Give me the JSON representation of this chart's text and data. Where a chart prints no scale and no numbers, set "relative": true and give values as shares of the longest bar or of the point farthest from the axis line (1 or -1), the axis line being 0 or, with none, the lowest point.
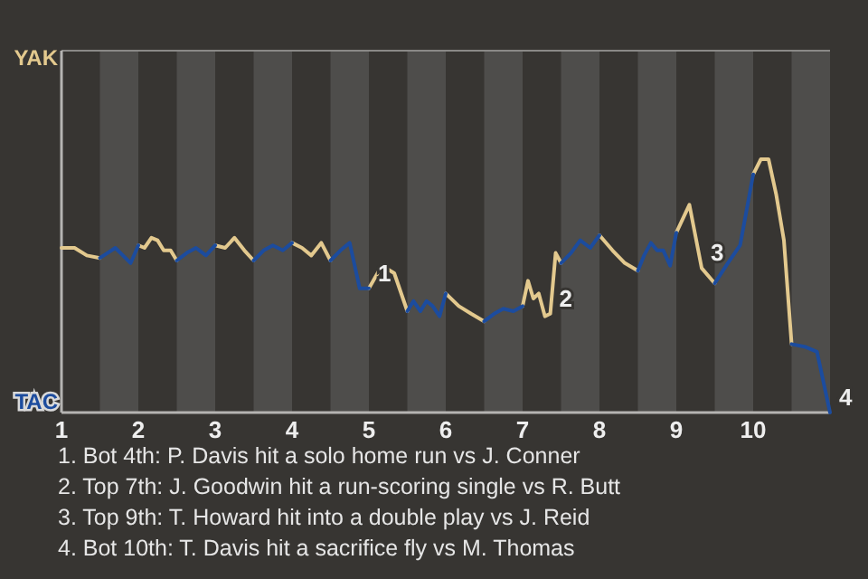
{
  "chart_data": {
    "type": "line",
    "relative": true,
    "xlim": [
      1,
      11
    ],
    "xticks": [
      1,
      2,
      3,
      4,
      5,
      6,
      7,
      8,
      9,
      10
    ],
    "x": [
      1,
      1.17,
      1.33,
      1.5,
      1.6,
      1.7,
      1.8,
      1.9,
      2,
      2.08,
      2.17,
      2.25,
      2.33,
      2.42,
      2.5,
      2.63,
      2.75,
      2.88,
      3,
      3.13,
      3.25,
      3.38,
      3.5,
      3.63,
      3.75,
      3.88,
      4,
      4.13,
      4.25,
      4.38,
      4.5,
      4.63,
      4.75,
      4.88,
      5,
      5.17,
      5.33,
      5.5,
      5.58,
      5.67,
      5.75,
      5.83,
      5.92,
      6,
      6.17,
      6.33,
      6.5,
      6.63,
      6.75,
      6.88,
      7,
      7.07,
      7.14,
      7.21,
      7.29,
      7.36,
      7.43,
      7.5,
      7.63,
      7.75,
      7.88,
      8,
      8.17,
      8.33,
      8.5,
      8.58,
      8.67,
      8.75,
      8.83,
      8.92,
      9,
      9.17,
      9.33,
      9.5,
      9.67,
      9.83,
      10,
      10.1,
      10.2,
      10.3,
      10.4,
      10.5,
      10.67,
      10.83,
      11
    ],
    "series": [
      {
        "name": "YAK",
        "color": "#e3c98e",
        "values": [
          0.65,
          0.65,
          0.62,
          0.61,
          null,
          null,
          null,
          null,
          0.66,
          0.65,
          0.69,
          0.68,
          0.64,
          0.64,
          0.6,
          null,
          null,
          null,
          0.66,
          0.65,
          0.69,
          0.64,
          0.6,
          null,
          null,
          null,
          0.67,
          0.65,
          0.62,
          0.67,
          0.6,
          null,
          null,
          null,
          0.49,
          0.58,
          0.55,
          0.4,
          null,
          null,
          null,
          null,
          null,
          0.47,
          0.42,
          0.39,
          0.36,
          null,
          null,
          null,
          0.42,
          0.52,
          0.45,
          0.47,
          0.38,
          0.39,
          0.63,
          0.59,
          null,
          null,
          null,
          0.7,
          0.64,
          0.59,
          0.56,
          null,
          null,
          null,
          null,
          null,
          0.71,
          0.82,
          0.57,
          0.51,
          null,
          null,
          0.94,
          1,
          1,
          0.86,
          0.68,
          0.27,
          null,
          null,
          null
        ]
      },
      {
        "name": "TAC",
        "color": "#1c4c9e",
        "values": [
          null,
          null,
          null,
          0.61,
          0.63,
          0.65,
          0.62,
          0.59,
          0.66,
          null,
          null,
          null,
          null,
          null,
          0.6,
          0.63,
          0.65,
          0.62,
          0.66,
          null,
          null,
          null,
          0.6,
          0.64,
          0.66,
          0.64,
          0.67,
          null,
          null,
          null,
          0.6,
          0.64,
          0.67,
          0.49,
          0.49,
          null,
          null,
          0.4,
          0.44,
          0.4,
          0.44,
          0.42,
          0.38,
          0.47,
          null,
          null,
          0.36,
          0.39,
          0.41,
          0.4,
          0.42,
          null,
          null,
          null,
          null,
          null,
          null,
          0.59,
          0.63,
          0.68,
          0.65,
          0.7,
          null,
          null,
          0.56,
          0.62,
          0.67,
          0.64,
          0.64,
          0.58,
          0.71,
          null,
          null,
          0.51,
          0.59,
          0.66,
          0.94,
          null,
          null,
          null,
          null,
          0.27,
          0.26,
          0.24,
          0
        ]
      }
    ],
    "bands": [
      {
        "axis": "x",
        "from": 1.5,
        "to": 2,
        "color": "#4e4d4b"
      },
      {
        "axis": "x",
        "from": 2.5,
        "to": 3,
        "color": "#4e4d4b"
      },
      {
        "axis": "x",
        "from": 3.5,
        "to": 4,
        "color": "#4e4d4b"
      },
      {
        "axis": "x",
        "from": 4.5,
        "to": 5,
        "color": "#4e4d4b"
      },
      {
        "axis": "x",
        "from": 5.5,
        "to": 6,
        "color": "#4e4d4b"
      },
      {
        "axis": "x",
        "from": 6.5,
        "to": 7,
        "color": "#4e4d4b"
      },
      {
        "axis": "x",
        "from": 7.5,
        "to": 8,
        "color": "#4e4d4b"
      },
      {
        "axis": "x",
        "from": 8.5,
        "to": 9,
        "color": "#4e4d4b"
      },
      {
        "axis": "x",
        "from": 9.5,
        "to": 10,
        "color": "#4e4d4b"
      },
      {
        "axis": "x",
        "from": 10.5,
        "to": 11,
        "color": "#4e4d4b"
      }
    ],
    "legend": "left",
    "marker": "none",
    "line_style": "solid",
    "annotations": [
      {
        "text": "1",
        "x": 5,
        "y": 0.49
      },
      {
        "text": "2",
        "x": 7.36,
        "y": 0.39
      },
      {
        "text": "3",
        "x": 9.33,
        "y": 0.57
      },
      {
        "text": "4",
        "x": 11,
        "y": 0
      },
      "1. Bot 4th: P. Davis hit a solo home run vs J. Conner",
      "2. Top 7th: J. Goodwin hit a run-scoring single vs R. Butt",
      "3. Top 9th: T. Howard hit into a double play vs J. Reid",
      "4. Bot 10th: T. Davis hit a sacrifice fly vs M. Thomas"
    ]
  }
}
